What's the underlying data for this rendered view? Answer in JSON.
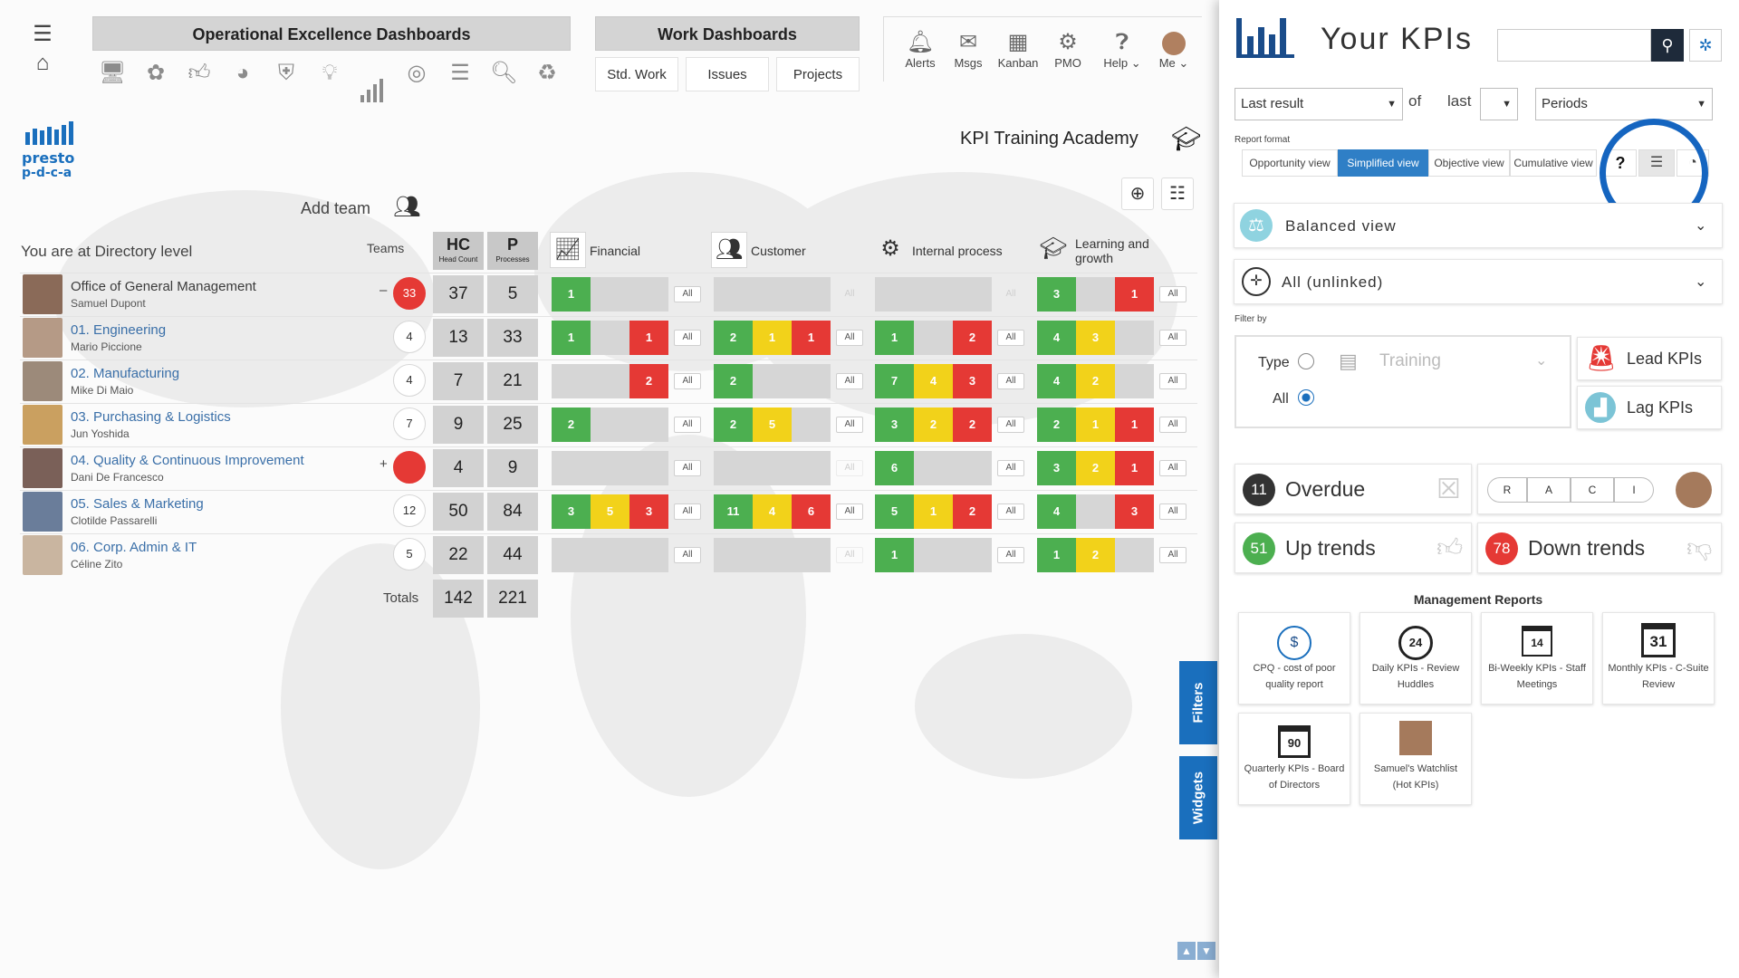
{
  "nav": {
    "menu_icon": "hamburger-icon",
    "home_icon": "home-icon"
  },
  "logo": {
    "text_top": "presto",
    "text_bottom": "p-d-c-a"
  },
  "headers": {
    "opex": "Operational Excellence Dashboards",
    "work": "Work Dashboards"
  },
  "opex_icons": [
    "monitor-icon",
    "brain-icon",
    "thumbs-up-icon",
    "pie-icon",
    "shield-icon",
    "lightbulb-icon",
    "bar-chart-icon",
    "gauge-icon",
    "document-icon",
    "search-check-icon",
    "recycle-icon"
  ],
  "work_buttons": [
    "Std. Work",
    "Issues",
    "Projects"
  ],
  "top_nav": [
    {
      "label": "Alerts",
      "icon": "bell-icon"
    },
    {
      "label": "Msgs",
      "icon": "message-icon"
    },
    {
      "label": "Kanban",
      "icon": "kanban-icon"
    },
    {
      "label": "PMO",
      "icon": "pmo-icon"
    },
    {
      "label": "Help",
      "icon": "help-icon"
    },
    {
      "label": "Me",
      "icon": "avatar"
    }
  ],
  "org": {
    "title": "KPI Training Academy",
    "add_team": "Add team",
    "level_text": "You are at Directory level",
    "teams_label": "Teams"
  },
  "table": {
    "hc": {
      "big": "HC",
      "small": "Head Count"
    },
    "p": {
      "big": "P",
      "small": "Processes"
    },
    "categories": [
      "Financial",
      "Customer",
      "Internal process",
      "Learning and growth"
    ],
    "all_label": "All",
    "totals_label": "Totals",
    "totals": {
      "hc": "142",
      "p": "221"
    },
    "rows": [
      {
        "name": "Office of General Management",
        "person": "Samuel Dupont",
        "sign": "–",
        "teams": "33",
        "teams_red": true,
        "hc": "37",
        "p": "5",
        "cats": [
          [
            [
              "g",
              "1"
            ],
            [
              "e",
              ""
            ],
            [
              "e",
              ""
            ]
          ],
          [
            [
              "e",
              ""
            ],
            [
              "e",
              ""
            ],
            [
              "e",
              ""
            ]
          ],
          [
            [
              "e",
              ""
            ],
            [
              "e",
              ""
            ],
            [
              "e",
              ""
            ]
          ],
          [
            [
              "g",
              "3"
            ],
            [
              "e",
              ""
            ],
            [
              "r",
              "1"
            ]
          ]
        ]
      },
      {
        "name": "01. Engineering",
        "person": "Mario Piccione",
        "sign": "",
        "teams": "4",
        "teams_red": false,
        "hc": "13",
        "p": "33",
        "cats": [
          [
            [
              "g",
              "1"
            ],
            [
              "e",
              ""
            ],
            [
              "r",
              "1"
            ]
          ],
          [
            [
              "g",
              "2"
            ],
            [
              "y",
              "1"
            ],
            [
              "r",
              "1"
            ]
          ],
          [
            [
              "g",
              "1"
            ],
            [
              "e",
              ""
            ],
            [
              "r",
              "2"
            ]
          ],
          [
            [
              "g",
              "4"
            ],
            [
              "y",
              "3"
            ],
            [
              "e",
              ""
            ]
          ]
        ]
      },
      {
        "name": "02. Manufacturing",
        "person": "Mike Di Maio",
        "sign": "",
        "teams": "4",
        "teams_red": false,
        "hc": "7",
        "p": "21",
        "cats": [
          [
            [
              "e",
              ""
            ],
            [
              "e",
              ""
            ],
            [
              "r",
              "2"
            ]
          ],
          [
            [
              "g",
              "2"
            ],
            [
              "e",
              ""
            ],
            [
              "e",
              ""
            ]
          ],
          [
            [
              "g",
              "7"
            ],
            [
              "y",
              "4"
            ],
            [
              "r",
              "3"
            ]
          ],
          [
            [
              "g",
              "4"
            ],
            [
              "y",
              "2"
            ],
            [
              "e",
              ""
            ]
          ]
        ]
      },
      {
        "name": "03. Purchasing & Logistics",
        "person": "Jun Yoshida",
        "sign": "",
        "teams": "7",
        "teams_red": false,
        "hc": "9",
        "p": "25",
        "cats": [
          [
            [
              "g",
              "2"
            ],
            [
              "e",
              ""
            ],
            [
              "e",
              ""
            ]
          ],
          [
            [
              "g",
              "2"
            ],
            [
              "y",
              "5"
            ],
            [
              "e",
              ""
            ]
          ],
          [
            [
              "g",
              "3"
            ],
            [
              "y",
              "2"
            ],
            [
              "r",
              "2"
            ]
          ],
          [
            [
              "g",
              "2"
            ],
            [
              "y",
              "1"
            ],
            [
              "r",
              "1"
            ]
          ]
        ]
      },
      {
        "name": "04. Quality & Continuous Improvement",
        "person": "Dani De Francesco",
        "sign": "+",
        "teams": "",
        "teams_red": true,
        "hc": "4",
        "p": "9",
        "cats": [
          [
            [
              "e",
              ""
            ],
            [
              "e",
              ""
            ],
            [
              "e",
              ""
            ]
          ],
          [
            [
              "e",
              ""
            ],
            [
              "e",
              ""
            ],
            [
              "e",
              ""
            ]
          ],
          [
            [
              "g",
              "6"
            ],
            [
              "e",
              ""
            ],
            [
              "e",
              ""
            ]
          ],
          [
            [
              "g",
              "3"
            ],
            [
              "y",
              "2"
            ],
            [
              "r",
              "1"
            ]
          ]
        ]
      },
      {
        "name": "05. Sales & Marketing",
        "person": "Clotilde Passarelli",
        "sign": "",
        "teams": "12",
        "teams_red": false,
        "hc": "50",
        "p": "84",
        "cats": [
          [
            [
              "g",
              "3"
            ],
            [
              "y",
              "5"
            ],
            [
              "r",
              "3"
            ]
          ],
          [
            [
              "g",
              "11"
            ],
            [
              "y",
              "4"
            ],
            [
              "r",
              "6"
            ]
          ],
          [
            [
              "g",
              "5"
            ],
            [
              "y",
              "1"
            ],
            [
              "r",
              "2"
            ]
          ],
          [
            [
              "g",
              "4"
            ],
            [
              "e",
              ""
            ],
            [
              "r",
              "3"
            ]
          ]
        ]
      },
      {
        "name": "06. Corp. Admin & IT",
        "person": "Céline Zito",
        "sign": "",
        "teams": "5",
        "teams_red": false,
        "hc": "22",
        "p": "44",
        "cats": [
          [
            [
              "e",
              ""
            ],
            [
              "e",
              ""
            ],
            [
              "e",
              ""
            ]
          ],
          [
            [
              "e",
              ""
            ],
            [
              "e",
              ""
            ],
            [
              "e",
              ""
            ]
          ],
          [
            [
              "g",
              "1"
            ],
            [
              "e",
              ""
            ],
            [
              "e",
              ""
            ]
          ],
          [
            [
              "g",
              "1"
            ],
            [
              "y",
              "2"
            ],
            [
              "e",
              ""
            ]
          ]
        ]
      }
    ],
    "all_dim": [
      [
        false,
        true,
        true,
        false
      ],
      [
        false,
        false,
        false,
        false
      ],
      [
        false,
        false,
        false,
        false
      ],
      [
        false,
        false,
        false,
        false
      ],
      [
        false,
        true,
        false,
        false
      ],
      [
        false,
        false,
        false,
        false
      ],
      [
        false,
        true,
        false,
        false
      ]
    ]
  },
  "sidebar": {
    "title": "Your KPIs",
    "search_placeholder": "",
    "result_select": "Last result",
    "of_text": "of",
    "last_text": "last",
    "last_select": "",
    "periods_select": "Periods",
    "report_format_label": "Report format",
    "tabs": [
      "Opportunity view",
      "Simplified view",
      "Objective view",
      "Cumulative view"
    ],
    "active_tab": 1,
    "help_label": "?",
    "balanced_view": "Balanced view",
    "all_unlinked": "All (unlinked)",
    "filter_by": "Filter by",
    "type_label": "Type",
    "all_label": "All",
    "training_label": "Training",
    "lead_kpis": "Lead KPIs",
    "lag_kpis": "Lag KPIs",
    "overdue": {
      "count": "11",
      "label": "Overdue"
    },
    "raci": [
      "R",
      "A",
      "C",
      "I"
    ],
    "up_trends": {
      "count": "51",
      "label": "Up trends"
    },
    "down_trends": {
      "count": "78",
      "label": "Down trends"
    },
    "management_reports_title": "Management Reports",
    "reports": [
      {
        "label": "CPQ - cost of poor quality report",
        "icon": "$"
      },
      {
        "label": "Daily KPIs - Review Huddles",
        "icon": "24"
      },
      {
        "label": "Bi-Weekly KPIs - Staff Meetings",
        "icon": "14"
      },
      {
        "label": "Monthly KPIs - C-Suite Review",
        "icon": "31"
      },
      {
        "label": "Quarterly KPIs - Board of Directors",
        "icon": "90"
      },
      {
        "label": "Samuel's Watchlist (Hot KPIs)",
        "icon": "avatar"
      }
    ]
  },
  "side_tabs": {
    "filters": "Filters",
    "widgets": "Widgets"
  },
  "colors": {
    "green": "#4caf50",
    "yellow": "#f2d21a",
    "red": "#e53935",
    "blue": "#1a6fbd",
    "highlight": "#1565c0"
  }
}
